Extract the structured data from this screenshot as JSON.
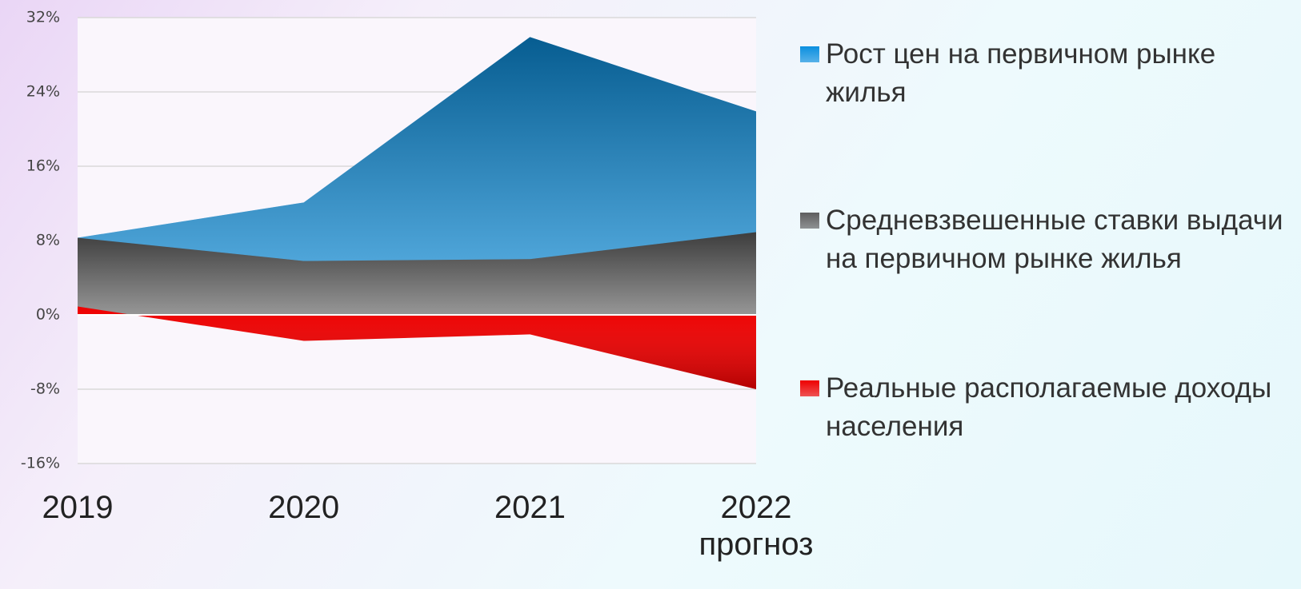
{
  "chart_data": {
    "type": "area",
    "categories": [
      "2019",
      "2020",
      "2021",
      "2022\nпрогноз"
    ],
    "series": [
      {
        "name": "Рост цен на первичном рынке жилья",
        "color": "#0a8fdf",
        "values": [
          8.3,
          12.1,
          29.9,
          21.9
        ]
      },
      {
        "name": "Средневзвешенные ставки выдачи на первичном рынке жилья",
        "color": "#5e5e5e",
        "values": [
          8.3,
          5.8,
          6.0,
          8.9
        ]
      },
      {
        "name": "Реальные располагаемые доходы населения",
        "color": "#ee0000",
        "values": [
          0.9,
          -2.8,
          -2.1,
          -8.0
        ]
      }
    ],
    "ylim": [
      -16,
      32
    ],
    "yticks": [
      {
        "value": -16,
        "label": "-16%"
      },
      {
        "value": -8,
        "label": "-8%"
      },
      {
        "value": 0,
        "label": "0%"
      },
      {
        "value": 8,
        "label": "8%"
      },
      {
        "value": 16,
        "label": "16%"
      },
      {
        "value": 24,
        "label": "24%"
      },
      {
        "value": 32,
        "label": "32%"
      }
    ],
    "grid": true,
    "legend": "right"
  }
}
